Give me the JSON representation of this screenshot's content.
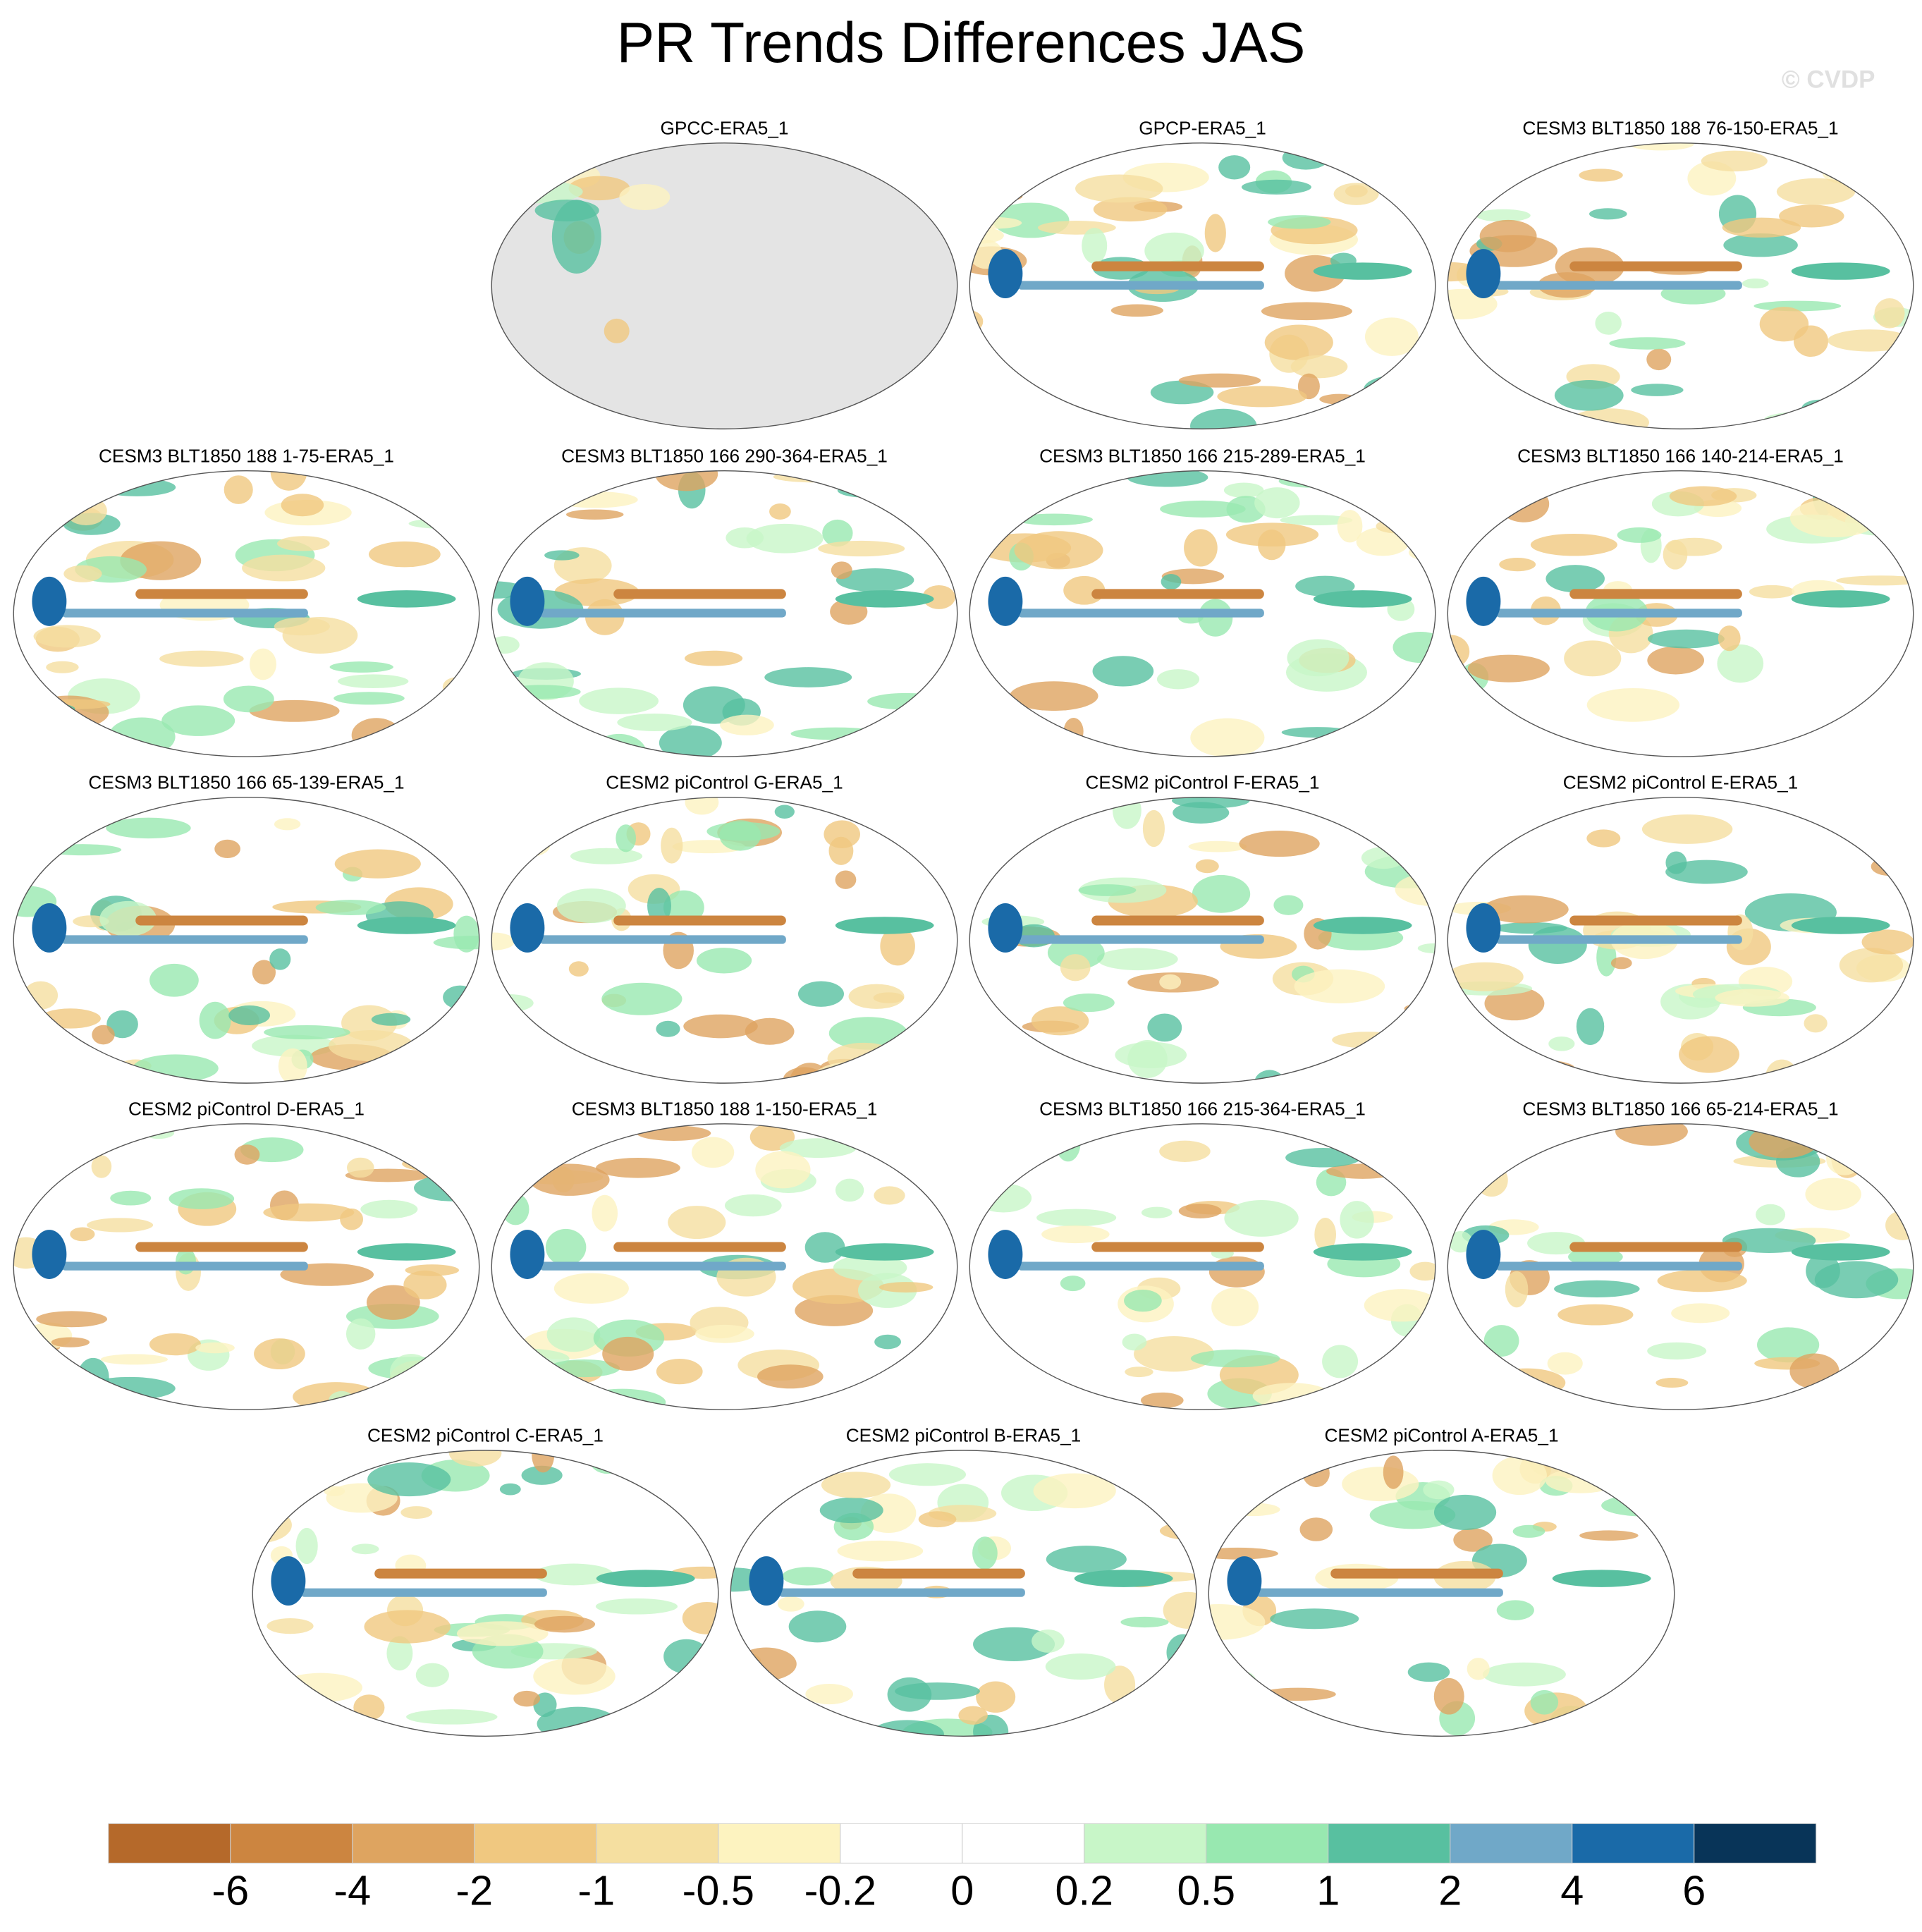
{
  "chart_data": {
    "type": "contour-map",
    "title": "PR Trends Differences JAS",
    "watermark": "© CVDP",
    "panels": [
      "GPCC-ERA5_1",
      "GPCP-ERA5_1",
      "CESM3 BLT1850 188 76-150-ERA5_1",
      "CESM3 BLT1850 188 1-75-ERA5_1",
      "CESM3 BLT1850 166 290-364-ERA5_1",
      "CESM3 BLT1850 166 215-289-ERA5_1",
      "CESM3 BLT1850 166 140-214-ERA5_1",
      "CESM3 BLT1850 166 65-139-ERA5_1",
      "CESM2 piControl G-ERA5_1",
      "CESM2 piControl F-ERA5_1",
      "CESM2 piControl E-ERA5_1",
      "CESM2 piControl D-ERA5_1",
      "CESM3 BLT1850 188 1-150-ERA5_1",
      "CESM3 BLT1850 166 215-364-ERA5_1",
      "CESM3 BLT1850 166 65-214-ERA5_1",
      "CESM2 piControl C-ERA5_1",
      "CESM2 piControl B-ERA5_1",
      "CESM2 piControl A-ERA5_1"
    ],
    "colorbar": {
      "levels": [
        -6,
        -4,
        -2,
        -1,
        -0.5,
        -0.2,
        0,
        0.2,
        0.5,
        1,
        2,
        4,
        6
      ],
      "colors": [
        "#b5692a",
        "#cc8540",
        "#dea460",
        "#f0c880",
        "#f5dfa0",
        "#fdf3c0",
        "#ffffff",
        "#ffffff",
        "#c8f6c8",
        "#98e8b0",
        "#58c0a0",
        "#70a8c8",
        "#1a6aa8",
        "#083458"
      ]
    }
  }
}
